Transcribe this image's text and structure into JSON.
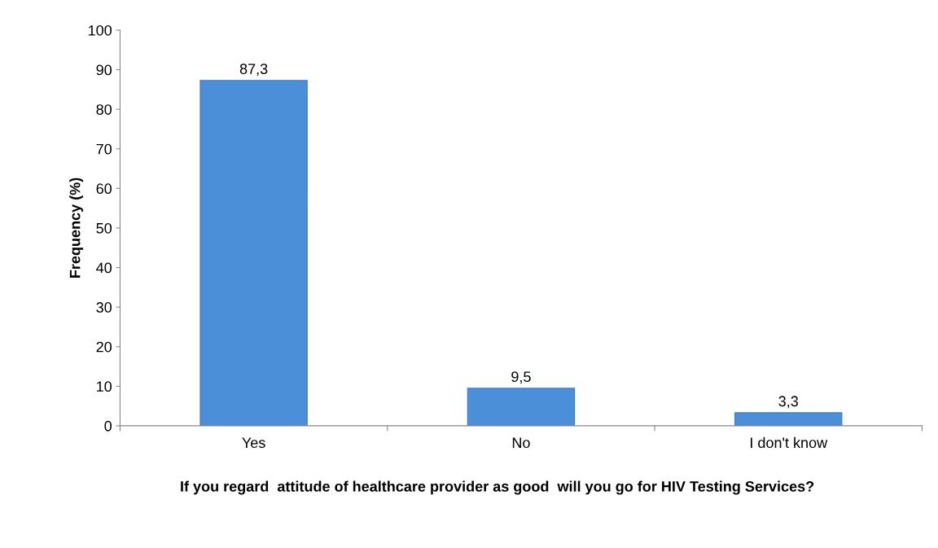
{
  "chart_data": {
    "type": "bar",
    "categories": [
      "Yes",
      "No",
      "I don't know"
    ],
    "values": [
      87.3,
      9.5,
      3.3
    ],
    "value_labels": [
      "87,3",
      "9,5",
      "3,3"
    ],
    "color": "#4a8fd8",
    "xlabel": "If you regard  attitude of healthcare provider as good  will you go for HIV Testing Services?",
    "ylabel": "Frequency (%)",
    "ylim": [
      0,
      100
    ],
    "yticks": [
      0,
      10,
      20,
      30,
      40,
      50,
      60,
      70,
      80,
      90,
      100
    ],
    "grid": false,
    "legend": false
  }
}
